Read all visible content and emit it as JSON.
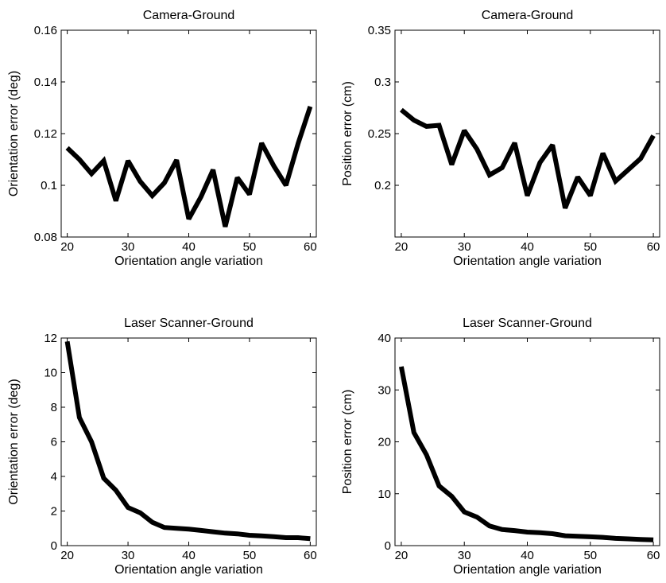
{
  "chart_data": [
    {
      "type": "line",
      "title": "Camera-Ground",
      "xlabel": "Orientation angle variation",
      "ylabel": "Orientation error (deg)",
      "xlim": [
        19,
        61
      ],
      "ylim": [
        0.08,
        0.16
      ],
      "xticks": [
        20,
        30,
        40,
        50,
        60
      ],
      "xtick_labels": [
        "20",
        "30",
        "40",
        "50",
        "60"
      ],
      "yticks": [
        0.08,
        0.1,
        0.12,
        0.14,
        0.16
      ],
      "ytick_labels": [
        "0.08",
        "0.1",
        "0.12",
        "0.14",
        "0.16"
      ],
      "grid": false,
      "series": [
        {
          "x": [
            20,
            22,
            24,
            26,
            28,
            30,
            32,
            34,
            36,
            38,
            40,
            42,
            44,
            46,
            48,
            50,
            52,
            54,
            56,
            58,
            60
          ],
          "values": [
            0.1145,
            0.11,
            0.1045,
            0.1095,
            0.094,
            0.1095,
            0.1015,
            0.096,
            0.101,
            0.1098,
            0.087,
            0.0955,
            0.106,
            0.084,
            0.103,
            0.0965,
            0.1163,
            0.1075,
            0.1,
            0.1162,
            0.1305
          ]
        }
      ]
    },
    {
      "type": "line",
      "title": "Camera-Ground",
      "xlabel": "Orientation angle variation",
      "ylabel": "Position error (cm)",
      "xlim": [
        19,
        61
      ],
      "ylim": [
        0.15,
        0.35
      ],
      "xticks": [
        20,
        30,
        40,
        50,
        60
      ],
      "xtick_labels": [
        "20",
        "30",
        "40",
        "50",
        "60"
      ],
      "yticks": [
        0.2,
        0.25,
        0.3,
        0.35
      ],
      "ytick_labels": [
        "0.2",
        "0.25",
        "0.3",
        "0.35"
      ],
      "grid": false,
      "series": [
        {
          "x": [
            20,
            22,
            24,
            26,
            28,
            30,
            32,
            34,
            36,
            38,
            40,
            42,
            44,
            46,
            48,
            50,
            52,
            54,
            56,
            58,
            60
          ],
          "values": [
            0.273,
            0.263,
            0.257,
            0.258,
            0.22,
            0.253,
            0.235,
            0.21,
            0.217,
            0.241,
            0.19,
            0.222,
            0.239,
            0.178,
            0.208,
            0.19,
            0.231,
            0.204,
            0.215,
            0.226,
            0.248
          ]
        }
      ]
    },
    {
      "type": "line",
      "title": "Laser Scanner-Ground",
      "xlabel": "Orientation angle variation",
      "ylabel": "Orientation error (deg)",
      "xlim": [
        19,
        61
      ],
      "ylim": [
        0,
        12
      ],
      "xticks": [
        20,
        30,
        40,
        50,
        60
      ],
      "xtick_labels": [
        "20",
        "30",
        "40",
        "50",
        "60"
      ],
      "yticks": [
        0,
        2,
        4,
        6,
        8,
        10,
        12
      ],
      "ytick_labels": [
        "0",
        "2",
        "4",
        "6",
        "8",
        "10",
        "12"
      ],
      "grid": false,
      "series": [
        {
          "x": [
            20,
            22,
            24,
            26,
            28,
            30,
            32,
            34,
            36,
            38,
            40,
            42,
            44,
            46,
            48,
            50,
            52,
            54,
            56,
            58,
            60
          ],
          "values": [
            11.8,
            7.4,
            6.0,
            3.9,
            3.2,
            2.2,
            1.9,
            1.35,
            1.05,
            1.0,
            0.95,
            0.88,
            0.8,
            0.72,
            0.68,
            0.6,
            0.56,
            0.52,
            0.46,
            0.46,
            0.4
          ]
        }
      ]
    },
    {
      "type": "line",
      "title": "Laser Scanner-Ground",
      "xlabel": "Orientation angle variation",
      "ylabel": "Position error (cm)",
      "xlim": [
        19,
        61
      ],
      "ylim": [
        0,
        40
      ],
      "xticks": [
        20,
        30,
        40,
        50,
        60
      ],
      "xtick_labels": [
        "20",
        "30",
        "40",
        "50",
        "60"
      ],
      "yticks": [
        0,
        10,
        20,
        30,
        40
      ],
      "ytick_labels": [
        "0",
        "10",
        "20",
        "30",
        "40"
      ],
      "grid": false,
      "series": [
        {
          "x": [
            20,
            22,
            24,
            26,
            28,
            30,
            32,
            34,
            36,
            38,
            40,
            42,
            44,
            46,
            48,
            50,
            52,
            54,
            56,
            58,
            60
          ],
          "values": [
            34.5,
            21.8,
            17.5,
            11.5,
            9.5,
            6.5,
            5.5,
            3.8,
            3.1,
            2.9,
            2.6,
            2.5,
            2.3,
            1.9,
            1.8,
            1.7,
            1.6,
            1.4,
            1.3,
            1.2,
            1.1
          ]
        }
      ]
    }
  ]
}
